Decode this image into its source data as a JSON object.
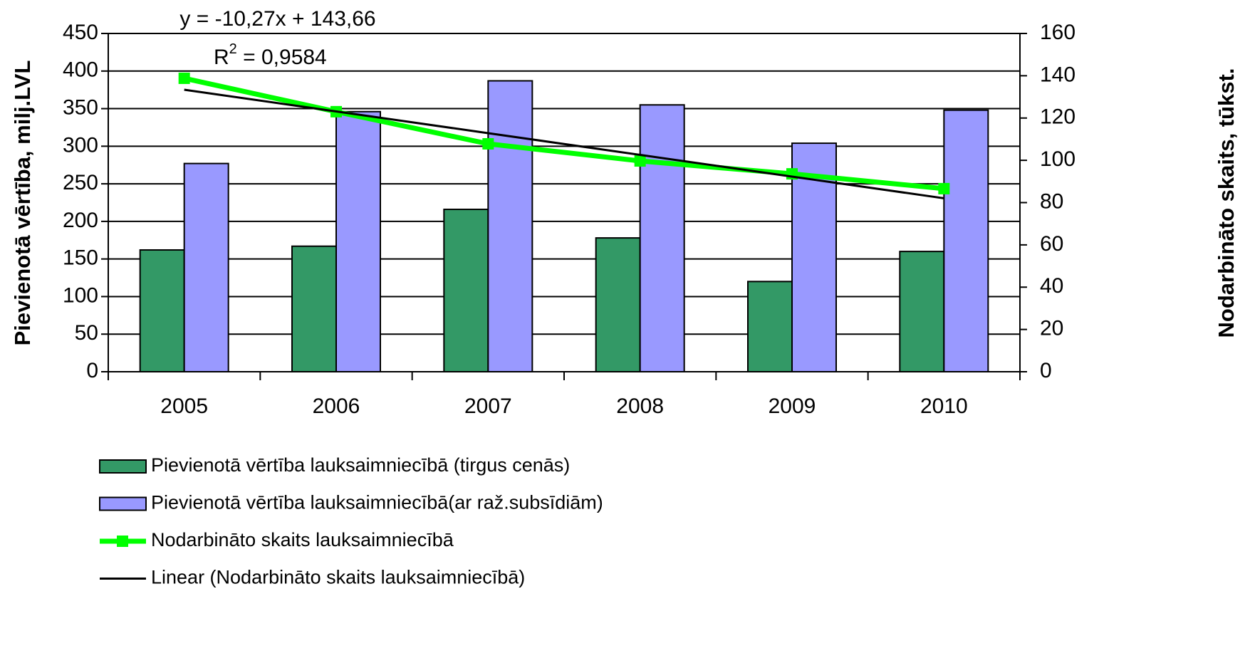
{
  "chart_data": {
    "type": "bar_line",
    "categories": [
      "2005",
      "2006",
      "2007",
      "2008",
      "2009",
      "2010"
    ],
    "series": [
      {
        "name": "Pievienotā vērtība lauksaimniecībā (tirgus cenās)",
        "type": "bar",
        "color": "#339966",
        "values": [
          162,
          167,
          216,
          178,
          120,
          160
        ]
      },
      {
        "name": "Pievienotā vērtība lauksaimniecībā(ar raž.subsīdiām)",
        "type": "bar",
        "color": "#9999ff",
        "values": [
          277,
          346,
          387,
          355,
          304,
          348
        ]
      },
      {
        "name": "Nodarbināto skaits lauksaimniecībā",
        "type": "line",
        "axis": "y2",
        "color": "#00ff00",
        "values": [
          138.8,
          123,
          107.8,
          99.7,
          93.6,
          86.6
        ]
      },
      {
        "name": "Linear (Nodarbināto skaits lauksaimniecībā)",
        "type": "trend",
        "axis": "y2",
        "color": "#000000",
        "values": [
          133.39,
          123.12,
          112.85,
          102.58,
          92.31,
          82.04
        ]
      }
    ],
    "ylabel": "Pievienotā vērtība, milj.LVL",
    "y2label": "Nodarbināto skaits, tūkst.",
    "ylim": [
      0,
      450
    ],
    "yticks": [
      0,
      50,
      100,
      150,
      200,
      250,
      300,
      350,
      400,
      450
    ],
    "y2lim": [
      0,
      160
    ],
    "y2ticks": [
      0,
      20,
      40,
      60,
      80,
      100,
      120,
      140,
      160
    ],
    "grid": true,
    "legend": "bottom",
    "annotations": [
      {
        "text": "y = -10,27x + 143,66"
      },
      {
        "parts": [
          "R",
          "2",
          " = 0,9584"
        ]
      }
    ]
  }
}
